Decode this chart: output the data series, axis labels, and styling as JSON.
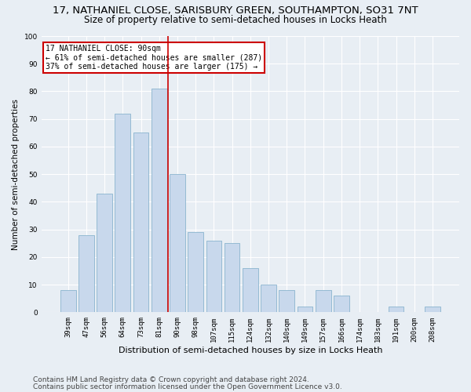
{
  "title1": "17, NATHANIEL CLOSE, SARISBURY GREEN, SOUTHAMPTON, SO31 7NT",
  "title2": "Size of property relative to semi-detached houses in Locks Heath",
  "xlabel": "Distribution of semi-detached houses by size in Locks Heath",
  "ylabel": "Number of semi-detached properties",
  "footer1": "Contains HM Land Registry data © Crown copyright and database right 2024.",
  "footer2": "Contains public sector information licensed under the Open Government Licence v3.0.",
  "categories": [
    "39sqm",
    "47sqm",
    "56sqm",
    "64sqm",
    "73sqm",
    "81sqm",
    "90sqm",
    "98sqm",
    "107sqm",
    "115sqm",
    "124sqm",
    "132sqm",
    "140sqm",
    "149sqm",
    "157sqm",
    "166sqm",
    "174sqm",
    "183sqm",
    "191sqm",
    "200sqm",
    "208sqm"
  ],
  "values": [
    8,
    28,
    43,
    72,
    65,
    81,
    50,
    29,
    26,
    25,
    16,
    10,
    8,
    2,
    8,
    6,
    0,
    0,
    2,
    0,
    2
  ],
  "bar_color": "#c8d8ec",
  "bar_edge_color": "#7aaac8",
  "highlight_index": 6,
  "highlight_line_color": "#cc0000",
  "annotation_text": "17 NATHANIEL CLOSE: 90sqm\n← 61% of semi-detached houses are smaller (287)\n37% of semi-detached houses are larger (175) →",
  "annotation_box_color": "white",
  "annotation_box_edge": "#cc0000",
  "ylim": [
    0,
    100
  ],
  "yticks": [
    0,
    10,
    20,
    30,
    40,
    50,
    60,
    70,
    80,
    90,
    100
  ],
  "bg_color": "#e8eef4",
  "plot_bg_color": "#e8eef4",
  "grid_color": "white",
  "title1_fontsize": 9.5,
  "title2_fontsize": 8.5,
  "xlabel_fontsize": 8,
  "ylabel_fontsize": 7.5,
  "tick_fontsize": 6.5,
  "footer_fontsize": 6.5
}
